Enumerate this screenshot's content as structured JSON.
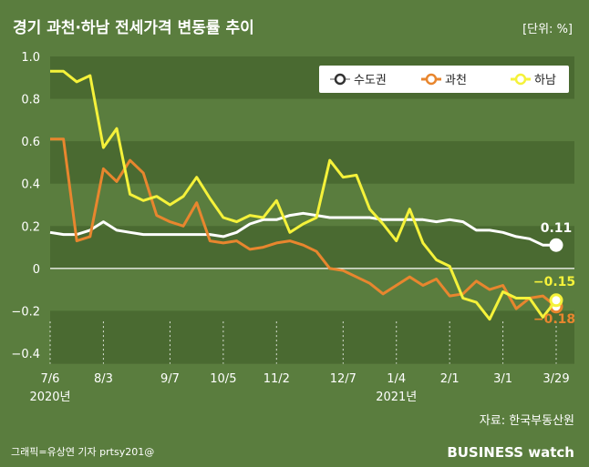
{
  "header": {
    "title": "경기 과천·하남 전세가격 변동률 추이",
    "unit": "[단위: %]"
  },
  "footer": {
    "source": "자료: 한국부동산원",
    "credit": "그래픽=유상연 기자 prtsy201@",
    "logo_text": "BUSINESS watch"
  },
  "colors": {
    "background": "#5a7d3e",
    "band_dark": "#4a6a31",
    "series_suwon": "#ffffff",
    "series_gwacheon": "#e8862e",
    "series_hanam": "#f5f23a"
  },
  "chart_data": {
    "type": "line",
    "title": "경기 과천·하남 전세가격 변동률 추이",
    "ylabel": "",
    "ylim": [
      -0.45,
      1.0
    ],
    "yticks": [
      1.0,
      0.8,
      0.6,
      0.4,
      0.2,
      0,
      -0.2,
      -0.4
    ],
    "ytick_labels": [
      "1.0",
      "0.8",
      "0.6",
      "0.4",
      "0.2",
      "0",
      "−0.2",
      "−0.4"
    ],
    "x_ticks": [
      {
        "index": 0,
        "label": "7/6",
        "sublabel": "2020년"
      },
      {
        "index": 4,
        "label": "8/3",
        "sublabel": ""
      },
      {
        "index": 9,
        "label": "9/7",
        "sublabel": ""
      },
      {
        "index": 13,
        "label": "10/5",
        "sublabel": ""
      },
      {
        "index": 17,
        "label": "11/2",
        "sublabel": ""
      },
      {
        "index": 22,
        "label": "12/7",
        "sublabel": ""
      },
      {
        "index": 26,
        "label": "1/4",
        "sublabel": "2021년"
      },
      {
        "index": 30,
        "label": "2/1",
        "sublabel": ""
      },
      {
        "index": 34,
        "label": "3/1",
        "sublabel": ""
      },
      {
        "index": 38,
        "label": "3/29",
        "sublabel": ""
      }
    ],
    "legend_position": "top-right",
    "grid": "horizontal bands",
    "series": [
      {
        "name": "수도권",
        "color": "#ffffff",
        "end_label": "0.11",
        "values": [
          0.17,
          0.16,
          0.16,
          0.18,
          0.22,
          0.18,
          0.17,
          0.16,
          0.16,
          0.16,
          0.16,
          0.16,
          0.16,
          0.15,
          0.17,
          0.21,
          0.23,
          0.23,
          0.25,
          0.26,
          0.25,
          0.24,
          0.24,
          0.24,
          0.24,
          0.23,
          0.23,
          0.23,
          0.23,
          0.22,
          0.23,
          0.22,
          0.18,
          0.18,
          0.17,
          0.15,
          0.14,
          0.11,
          0.11
        ]
      },
      {
        "name": "과천",
        "color": "#e8862e",
        "end_label": "−0.18",
        "values": [
          0.61,
          0.61,
          0.13,
          0.15,
          0.47,
          0.41,
          0.51,
          0.45,
          0.25,
          0.22,
          0.2,
          0.31,
          0.13,
          0.12,
          0.13,
          0.09,
          0.1,
          0.12,
          0.13,
          0.11,
          0.08,
          0.0,
          -0.01,
          -0.04,
          -0.07,
          -0.12,
          -0.08,
          -0.04,
          -0.08,
          -0.05,
          -0.13,
          -0.12,
          -0.06,
          -0.1,
          -0.08,
          -0.19,
          -0.14,
          -0.13,
          -0.18
        ]
      },
      {
        "name": "하남",
        "color": "#f5f23a",
        "end_label": "−0.15",
        "values": [
          0.93,
          0.93,
          0.88,
          0.91,
          0.57,
          0.66,
          0.35,
          0.32,
          0.34,
          0.3,
          0.34,
          0.43,
          0.33,
          0.24,
          0.22,
          0.25,
          0.24,
          0.32,
          0.17,
          0.21,
          0.24,
          0.51,
          0.43,
          0.44,
          0.28,
          0.21,
          0.13,
          0.28,
          0.12,
          0.04,
          0.01,
          -0.14,
          -0.16,
          -0.24,
          -0.11,
          -0.14,
          -0.14,
          -0.23,
          -0.15
        ]
      }
    ]
  }
}
